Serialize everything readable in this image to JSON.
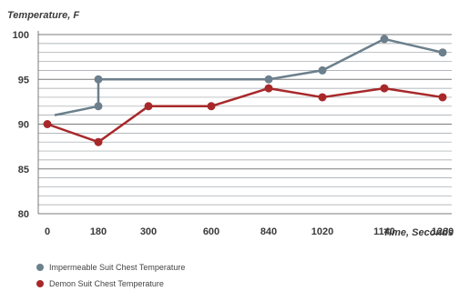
{
  "chart_data": {
    "type": "line",
    "ylabel": "Temperature, F",
    "xlabel": "Time, Seconds",
    "ylim": [
      80,
      100
    ],
    "y_ticks": [
      "80",
      "85",
      "90",
      "95",
      "100"
    ],
    "categories": [
      "0",
      "180",
      "300",
      "600",
      "840",
      "1020",
      "1140",
      "1260"
    ],
    "grid": true,
    "legend_position": "bottom-left",
    "series": [
      {
        "name": "Impermeable Suit Chest Temperature",
        "color": "#6b7f8c",
        "points": [
          {
            "x": "0",
            "y": 91,
            "marker": false
          },
          {
            "x": "180",
            "y": 92,
            "marker": true
          },
          {
            "x": "180",
            "y": 95,
            "marker": true
          },
          {
            "x": "840",
            "y": 95,
            "marker": true
          },
          {
            "x": "1020",
            "y": 96,
            "marker": true
          },
          {
            "x": "1140",
            "y": 99.5,
            "marker": true
          },
          {
            "x": "1260",
            "y": 98,
            "marker": true
          }
        ]
      },
      {
        "name": "Demon Suit Chest Temperature",
        "color": "#a8282a",
        "points": [
          {
            "x": "0",
            "y": 90,
            "marker": true
          },
          {
            "x": "180",
            "y": 88,
            "marker": true
          },
          {
            "x": "300",
            "y": 92,
            "marker": true
          },
          {
            "x": "600",
            "y": 92,
            "marker": true
          },
          {
            "x": "840",
            "y": 94,
            "marker": true
          },
          {
            "x": "1020",
            "y": 93,
            "marker": true
          },
          {
            "x": "1140",
            "y": 94,
            "marker": true
          },
          {
            "x": "1260",
            "y": 93,
            "marker": true
          }
        ]
      }
    ]
  }
}
